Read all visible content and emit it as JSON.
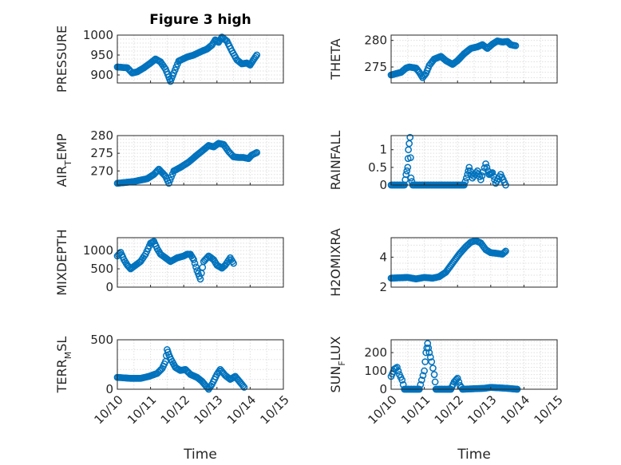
{
  "figure": {
    "title": "Figure 3 high",
    "xlabel": "Time"
  },
  "chart_data": [
    {
      "type": "scatter",
      "ylabel": "PRESSURE",
      "title": "Figure 3 high",
      "grid": true,
      "color": "#0072bd",
      "xlim": [
        0,
        5
      ],
      "ylim": [
        880,
        1000
      ],
      "yticks": [
        900,
        950,
        1000
      ],
      "xticks": [
        0,
        1,
        2,
        3,
        4,
        5
      ],
      "xticklabels": [],
      "x": [],
      "y": [],
      "series_control": [
        [
          0.0,
          920
        ],
        [
          0.3,
          918
        ],
        [
          0.45,
          905
        ],
        [
          0.6,
          908
        ],
        [
          0.8,
          918
        ],
        [
          1.0,
          930
        ],
        [
          1.15,
          940
        ],
        [
          1.3,
          933
        ],
        [
          1.45,
          915
        ],
        [
          1.55,
          895
        ],
        [
          1.6,
          884
        ],
        [
          1.7,
          905
        ],
        [
          1.85,
          935
        ],
        [
          2.1,
          945
        ],
        [
          2.3,
          950
        ],
        [
          2.5,
          958
        ],
        [
          2.7,
          965
        ],
        [
          2.85,
          975
        ],
        [
          2.95,
          988
        ],
        [
          3.05,
          982
        ],
        [
          3.15,
          995
        ],
        [
          3.3,
          985
        ],
        [
          3.45,
          960
        ],
        [
          3.6,
          938
        ],
        [
          3.75,
          928
        ],
        [
          3.9,
          930
        ],
        [
          4.0,
          925
        ],
        [
          4.1,
          938
        ],
        [
          4.2,
          950
        ]
      ]
    },
    {
      "type": "scatter",
      "ylabel": "THETA",
      "grid": true,
      "color": "#0072bd",
      "xlim": [
        0,
        5
      ],
      "ylim": [
        272,
        281
      ],
      "yticks": [
        275,
        280
      ],
      "xticks": [
        0,
        1,
        2,
        3,
        4,
        5
      ],
      "xticklabels": [],
      "x": [],
      "y": [],
      "series_control": [
        [
          0.0,
          273.5
        ],
        [
          0.3,
          274.0
        ],
        [
          0.45,
          274.8
        ],
        [
          0.55,
          275.0
        ],
        [
          0.75,
          274.8
        ],
        [
          0.85,
          274.0
        ],
        [
          0.95,
          273.0
        ],
        [
          1.05,
          273.8
        ],
        [
          1.15,
          275.3
        ],
        [
          1.3,
          276.5
        ],
        [
          1.5,
          277.0
        ],
        [
          1.65,
          276.2
        ],
        [
          1.85,
          275.5
        ],
        [
          2.0,
          276.2
        ],
        [
          2.2,
          277.5
        ],
        [
          2.4,
          278.5
        ],
        [
          2.6,
          278.8
        ],
        [
          2.75,
          279.2
        ],
        [
          2.9,
          278.5
        ],
        [
          3.05,
          279.3
        ],
        [
          3.2,
          279.9
        ],
        [
          3.35,
          279.7
        ],
        [
          3.5,
          279.8
        ],
        [
          3.6,
          279.2
        ],
        [
          3.75,
          279.0
        ]
      ]
    },
    {
      "type": "scatter",
      "ylabel": "AIR_TEMP",
      "ylabel_main": "AIR",
      "ylabel_sub": "T",
      "ylabel_rest": "EMP",
      "grid": true,
      "color": "#0072bd",
      "xlim": [
        0,
        5
      ],
      "ylim": [
        266,
        280
      ],
      "yticks": [
        270,
        275,
        280
      ],
      "xticks": [
        0,
        1,
        2,
        3,
        4,
        5
      ],
      "xticklabels": [],
      "x": [],
      "y": [],
      "series_control": [
        [
          0.0,
          266.5
        ],
        [
          0.5,
          267.0
        ],
        [
          0.9,
          267.8
        ],
        [
          1.1,
          269.0
        ],
        [
          1.25,
          270.5
        ],
        [
          1.35,
          269.5
        ],
        [
          1.45,
          268.5
        ],
        [
          1.55,
          266.5
        ],
        [
          1.7,
          270.0
        ],
        [
          1.9,
          271.0
        ],
        [
          2.15,
          272.5
        ],
        [
          2.4,
          274.5
        ],
        [
          2.6,
          276.0
        ],
        [
          2.75,
          277.2
        ],
        [
          2.9,
          276.8
        ],
        [
          3.05,
          277.8
        ],
        [
          3.2,
          277.5
        ],
        [
          3.35,
          275.5
        ],
        [
          3.5,
          274.0
        ],
        [
          3.65,
          273.8
        ],
        [
          3.8,
          273.8
        ],
        [
          3.95,
          273.5
        ],
        [
          4.05,
          274.5
        ],
        [
          4.2,
          275.2
        ]
      ]
    },
    {
      "type": "scatter",
      "ylabel": "RAINFALL",
      "grid": true,
      "color": "#0072bd",
      "xlim": [
        0,
        5
      ],
      "ylim": [
        0,
        1.4
      ],
      "yticks": [
        0,
        0.5,
        1
      ],
      "xticks": [
        0,
        1,
        2,
        3,
        4,
        5
      ],
      "xticklabels": [],
      "x": [],
      "y": [],
      "series_control": [
        [
          0.0,
          0
        ],
        [
          0.4,
          0
        ],
        [
          0.45,
          0.3
        ],
        [
          0.5,
          0.5
        ],
        [
          0.52,
          1.0
        ],
        [
          0.57,
          1.35
        ],
        [
          0.6,
          0.2
        ],
        [
          0.65,
          0
        ],
        [
          2.2,
          0
        ],
        [
          2.3,
          0.3
        ],
        [
          2.35,
          0.5
        ],
        [
          2.45,
          0.2
        ],
        [
          2.6,
          0.4
        ],
        [
          2.7,
          0.15
        ],
        [
          2.85,
          0.6
        ],
        [
          2.95,
          0.3
        ],
        [
          3.05,
          0.35
        ],
        [
          3.15,
          0.05
        ],
        [
          3.3,
          0.3
        ],
        [
          3.45,
          0.0
        ]
      ]
    },
    {
      "type": "scatter",
      "ylabel": "MIXDEPTH",
      "grid": true,
      "color": "#0072bd",
      "xlim": [
        0,
        5
      ],
      "ylim": [
        0,
        1350
      ],
      "yticks": [
        0,
        500,
        1000
      ],
      "xticks": [
        0,
        1,
        2,
        3,
        4,
        5
      ],
      "xticklabels": [],
      "x": [],
      "y": [],
      "series_control": [
        [
          0.0,
          850
        ],
        [
          0.1,
          950
        ],
        [
          0.2,
          750
        ],
        [
          0.3,
          600
        ],
        [
          0.4,
          500
        ],
        [
          0.55,
          600
        ],
        [
          0.7,
          700
        ],
        [
          0.85,
          900
        ],
        [
          1.0,
          1200
        ],
        [
          1.1,
          1250
        ],
        [
          1.2,
          1050
        ],
        [
          1.3,
          900
        ],
        [
          1.45,
          800
        ],
        [
          1.6,
          700
        ],
        [
          1.8,
          800
        ],
        [
          2.0,
          850
        ],
        [
          2.1,
          900
        ],
        [
          2.2,
          900
        ],
        [
          2.3,
          750
        ],
        [
          2.4,
          450
        ],
        [
          2.5,
          220
        ],
        [
          2.6,
          700
        ],
        [
          2.75,
          850
        ],
        [
          2.9,
          750
        ],
        [
          3.0,
          600
        ],
        [
          3.15,
          520
        ],
        [
          3.25,
          600
        ],
        [
          3.4,
          800
        ],
        [
          3.5,
          650
        ]
      ]
    },
    {
      "type": "scatter",
      "ylabel": "H2OMIXRA",
      "grid": true,
      "color": "#0072bd",
      "xlim": [
        0,
        5
      ],
      "ylim": [
        2,
        5.3
      ],
      "yticks": [
        2,
        4
      ],
      "xticks": [
        0,
        1,
        2,
        3,
        4,
        5
      ],
      "xticklabels": [],
      "x": [],
      "y": [],
      "series_control": [
        [
          0.0,
          2.6
        ],
        [
          0.5,
          2.65
        ],
        [
          0.75,
          2.55
        ],
        [
          1.0,
          2.65
        ],
        [
          1.25,
          2.6
        ],
        [
          1.45,
          2.7
        ],
        [
          1.65,
          3.0
        ],
        [
          1.85,
          3.6
        ],
        [
          2.05,
          4.2
        ],
        [
          2.25,
          4.7
        ],
        [
          2.4,
          5.0
        ],
        [
          2.55,
          5.1
        ],
        [
          2.7,
          4.95
        ],
        [
          2.85,
          4.5
        ],
        [
          3.0,
          4.3
        ],
        [
          3.2,
          4.25
        ],
        [
          3.35,
          4.2
        ],
        [
          3.45,
          4.4
        ]
      ]
    },
    {
      "type": "scatter",
      "ylabel": "TERR_MSL",
      "ylabel_main": "TERR",
      "ylabel_sub": "M",
      "ylabel_rest": "SL",
      "grid": true,
      "color": "#0072bd",
      "xlim": [
        0,
        5
      ],
      "ylim": [
        0,
        500
      ],
      "yticks": [
        0,
        500
      ],
      "xticks": [
        0,
        1,
        2,
        3,
        4,
        5
      ],
      "xticklabels": [
        "10/10",
        "10/11",
        "10/12",
        "10/13",
        "10/14",
        "10/15"
      ],
      "x": [],
      "y": [],
      "series_control": [
        [
          0.0,
          120
        ],
        [
          0.4,
          110
        ],
        [
          0.7,
          110
        ],
        [
          0.95,
          130
        ],
        [
          1.2,
          160
        ],
        [
          1.35,
          210
        ],
        [
          1.45,
          280
        ],
        [
          1.5,
          400
        ],
        [
          1.55,
          350
        ],
        [
          1.62,
          300
        ],
        [
          1.75,
          220
        ],
        [
          1.9,
          190
        ],
        [
          2.05,
          200
        ],
        [
          2.2,
          150
        ],
        [
          2.4,
          120
        ],
        [
          2.55,
          80
        ],
        [
          2.65,
          40
        ],
        [
          2.75,
          0
        ],
        [
          2.85,
          50
        ],
        [
          3.0,
          150
        ],
        [
          3.1,
          200
        ],
        [
          3.25,
          140
        ],
        [
          3.4,
          100
        ],
        [
          3.55,
          130
        ],
        [
          3.65,
          90
        ],
        [
          3.75,
          50
        ],
        [
          3.82,
          20
        ]
      ]
    },
    {
      "type": "scatter",
      "ylabel": "SUN_FLUX",
      "ylabel_main": "SUN",
      "ylabel_sub": "F",
      "ylabel_rest": "LUX",
      "grid": true,
      "color": "#0072bd",
      "xlim": [
        0,
        5
      ],
      "ylim": [
        0,
        270
      ],
      "yticks": [
        0,
        100,
        200
      ],
      "xticks": [
        0,
        1,
        2,
        3,
        4,
        5
      ],
      "xticklabels": [
        "10/10",
        "10/11",
        "10/12",
        "10/13",
        "10/14",
        "10/15"
      ],
      "x": [],
      "y": [],
      "series_control": [
        [
          0.0,
          70
        ],
        [
          0.1,
          110
        ],
        [
          0.18,
          120
        ],
        [
          0.25,
          80
        ],
        [
          0.33,
          50
        ],
        [
          0.4,
          0
        ],
        [
          0.65,
          0
        ],
        [
          0.85,
          0
        ],
        [
          0.92,
          50
        ],
        [
          1.0,
          100
        ],
        [
          1.05,
          200
        ],
        [
          1.1,
          250
        ],
        [
          1.15,
          200
        ],
        [
          1.22,
          150
        ],
        [
          1.3,
          80
        ],
        [
          1.35,
          0
        ],
        [
          1.8,
          0
        ],
        [
          1.9,
          40
        ],
        [
          2.0,
          60
        ],
        [
          2.08,
          20
        ],
        [
          2.15,
          0
        ],
        [
          2.8,
          5
        ],
        [
          3.0,
          10
        ],
        [
          3.5,
          5
        ],
        [
          3.8,
          0
        ]
      ]
    }
  ]
}
